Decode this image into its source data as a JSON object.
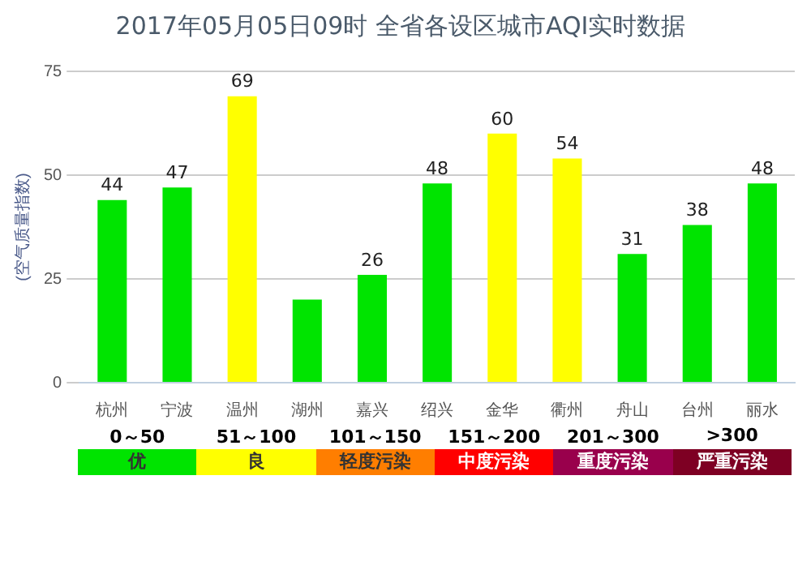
{
  "chart_data": {
    "type": "bar",
    "title": "2017年05月05日09时 全省各设区城市AQI实时数据",
    "ylabel": "(空气质量指数)",
    "categories": [
      "杭州",
      "宁波",
      "温州",
      "湖州",
      "嘉兴",
      "绍兴",
      "金华",
      "衢州",
      "舟山",
      "台州",
      "丽水"
    ],
    "values": [
      44,
      47,
      69,
      20,
      26,
      48,
      60,
      54,
      31,
      38,
      48
    ],
    "colors": [
      "#00e400",
      "#00e400",
      "#ffff00",
      "#00e400",
      "#00e400",
      "#00e400",
      "#ffff00",
      "#ffff00",
      "#00e400",
      "#00e400",
      "#00e400"
    ],
    "value_labels": [
      "44",
      "47",
      "69",
      null,
      "26",
      "48",
      "60",
      "54",
      "31",
      "38",
      "48"
    ],
    "ylim": [
      0,
      75
    ],
    "yticks": [
      0,
      25,
      50,
      75
    ],
    "grid": "y",
    "annotations": [
      "0～50",
      "51～100",
      "101～150",
      "151～200",
      "201～300",
      ">300",
      "优",
      "良",
      "轻度污染",
      "中度污染",
      "重度污染",
      "严重污染"
    ]
  }
}
